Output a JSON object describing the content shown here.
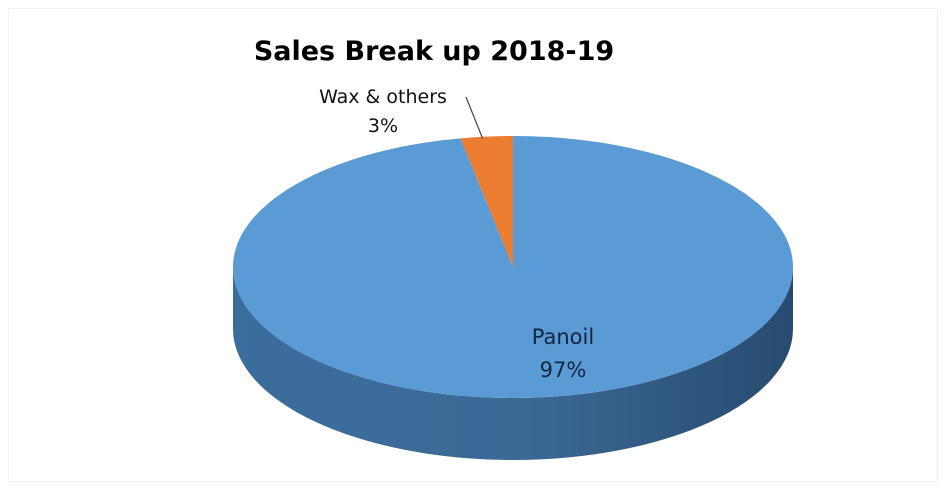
{
  "chart_data": {
    "type": "pie",
    "title": "Sales Break up 2018-19",
    "three_d": true,
    "labels": [
      "Panoil",
      "Wax & others"
    ],
    "values": [
      97,
      3
    ],
    "value_labels": [
      "97%",
      "3%"
    ],
    "colors": {
      "Panoil": "#5b9bd5",
      "Wax & others": "#ed7d31"
    },
    "legend": "none"
  }
}
